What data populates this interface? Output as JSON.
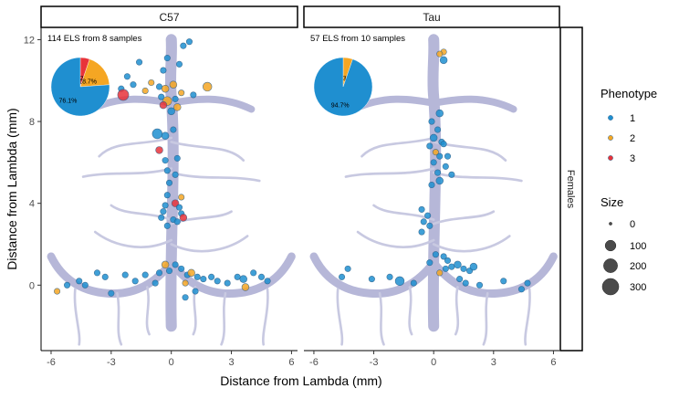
{
  "chart_data": {
    "type": "scatter",
    "xlabel": "Distance from Lambda (mm)",
    "ylabel": "Distance from Lambda (mm)",
    "xlim": [
      -6.5,
      6.3
    ],
    "ylim": [
      -3.2,
      12.6
    ],
    "xticks": [
      -6,
      -3,
      0,
      3,
      6
    ],
    "yticks": [
      0,
      4,
      8,
      12
    ],
    "grid": false,
    "facet_row_label": "Females",
    "legend": {
      "placement": "right",
      "phenotype": {
        "title": "Phenotype",
        "items": [
          {
            "label": "1",
            "color": "#1f8fd0"
          },
          {
            "label": "2",
            "color": "#f5a623"
          },
          {
            "label": "3",
            "color": "#e8333a"
          }
        ]
      },
      "size": {
        "title": "Size",
        "items": [
          {
            "label": "0",
            "value": 0
          },
          {
            "label": "100",
            "value": 100
          },
          {
            "label": "200",
            "value": 200
          },
          {
            "label": "300",
            "value": 300
          }
        ]
      }
    },
    "panels": [
      {
        "strip": "C57",
        "annotation": "114 ELS from 8 samples",
        "pie": [
          {
            "phenotype": "1",
            "fraction": 0.761,
            "label": "76.1%"
          },
          {
            "phenotype": "2",
            "fraction": 0.187,
            "label": "18.7%"
          },
          {
            "phenotype": "3",
            "fraction": 0.052,
            "label": "5.2%"
          }
        ],
        "points": [
          {
            "x": 0.6,
            "y": 11.7,
            "p": 1,
            "s": 15
          },
          {
            "x": 0.9,
            "y": 11.9,
            "p": 1,
            "s": 15
          },
          {
            "x": -0.2,
            "y": 11.1,
            "p": 1,
            "s": 15
          },
          {
            "x": 0.4,
            "y": 10.8,
            "p": 1,
            "s": 15
          },
          {
            "x": -0.4,
            "y": 10.5,
            "p": 1,
            "s": 15
          },
          {
            "x": -1.6,
            "y": 10.9,
            "p": 1,
            "s": 15
          },
          {
            "x": -2.2,
            "y": 10.2,
            "p": 1,
            "s": 15
          },
          {
            "x": -1.9,
            "y": 9.8,
            "p": 1,
            "s": 15
          },
          {
            "x": -2.5,
            "y": 9.6,
            "p": 1,
            "s": 15
          },
          {
            "x": -1.3,
            "y": 9.5,
            "p": 2,
            "s": 15
          },
          {
            "x": -1.0,
            "y": 9.9,
            "p": 2,
            "s": 15
          },
          {
            "x": -0.6,
            "y": 9.7,
            "p": 1,
            "s": 15
          },
          {
            "x": -0.3,
            "y": 9.6,
            "p": 2,
            "s": 30
          },
          {
            "x": 0.1,
            "y": 9.8,
            "p": 2,
            "s": 30
          },
          {
            "x": 0.5,
            "y": 9.4,
            "p": 2,
            "s": 15
          },
          {
            "x": 0.2,
            "y": 9.1,
            "p": 1,
            "s": 15
          },
          {
            "x": -0.5,
            "y": 9.2,
            "p": 1,
            "s": 15
          },
          {
            "x": -0.2,
            "y": 9.0,
            "p": 2,
            "s": 60
          },
          {
            "x": -0.4,
            "y": 8.8,
            "p": 3,
            "s": 30
          },
          {
            "x": 0.3,
            "y": 8.7,
            "p": 2,
            "s": 30
          },
          {
            "x": 0.0,
            "y": 8.5,
            "p": 1,
            "s": 30
          },
          {
            "x": 1.8,
            "y": 9.7,
            "p": 2,
            "s": 60
          },
          {
            "x": -2.4,
            "y": 9.3,
            "p": 3,
            "s": 110
          },
          {
            "x": 1.1,
            "y": 9.3,
            "p": 1,
            "s": 15
          },
          {
            "x": -0.7,
            "y": 7.4,
            "p": 1,
            "s": 80
          },
          {
            "x": -0.3,
            "y": 7.3,
            "p": 1,
            "s": 30
          },
          {
            "x": 0.1,
            "y": 7.6,
            "p": 1,
            "s": 15
          },
          {
            "x": -0.6,
            "y": 6.6,
            "p": 3,
            "s": 30
          },
          {
            "x": -0.3,
            "y": 6.1,
            "p": 1,
            "s": 15
          },
          {
            "x": 0.3,
            "y": 6.2,
            "p": 1,
            "s": 15
          },
          {
            "x": -0.2,
            "y": 5.6,
            "p": 1,
            "s": 15
          },
          {
            "x": 0.2,
            "y": 5.4,
            "p": 1,
            "s": 15
          },
          {
            "x": -0.1,
            "y": 5.0,
            "p": 1,
            "s": 15
          },
          {
            "x": 0.5,
            "y": 4.3,
            "p": 2,
            "s": 15
          },
          {
            "x": -0.2,
            "y": 4.4,
            "p": 1,
            "s": 15
          },
          {
            "x": 0.2,
            "y": 4.0,
            "p": 3,
            "s": 30
          },
          {
            "x": -0.3,
            "y": 3.9,
            "p": 1,
            "s": 15
          },
          {
            "x": 0.4,
            "y": 3.8,
            "p": 1,
            "s": 15
          },
          {
            "x": -0.4,
            "y": 3.6,
            "p": 1,
            "s": 15
          },
          {
            "x": 0.5,
            "y": 3.5,
            "p": 1,
            "s": 15
          },
          {
            "x": 0.1,
            "y": 3.2,
            "p": 1,
            "s": 15
          },
          {
            "x": 0.6,
            "y": 3.3,
            "p": 3,
            "s": 30
          },
          {
            "x": -0.5,
            "y": 3.3,
            "p": 1,
            "s": 15
          },
          {
            "x": 0.3,
            "y": 3.1,
            "p": 1,
            "s": 15
          },
          {
            "x": -0.2,
            "y": 2.9,
            "p": 1,
            "s": 15
          },
          {
            "x": -5.7,
            "y": -0.3,
            "p": 2,
            "s": 15
          },
          {
            "x": -5.2,
            "y": 0.0,
            "p": 1,
            "s": 15
          },
          {
            "x": -4.6,
            "y": 0.2,
            "p": 1,
            "s": 15
          },
          {
            "x": -4.3,
            "y": 0.0,
            "p": 1,
            "s": 15
          },
          {
            "x": -3.7,
            "y": 0.6,
            "p": 1,
            "s": 15
          },
          {
            "x": -3.3,
            "y": 0.4,
            "p": 1,
            "s": 15
          },
          {
            "x": -3.0,
            "y": -0.4,
            "p": 1,
            "s": 15
          },
          {
            "x": -2.3,
            "y": 0.5,
            "p": 1,
            "s": 15
          },
          {
            "x": -1.8,
            "y": 0.2,
            "p": 1,
            "s": 15
          },
          {
            "x": -1.3,
            "y": 0.5,
            "p": 1,
            "s": 15
          },
          {
            "x": -0.8,
            "y": 0.1,
            "p": 1,
            "s": 15
          },
          {
            "x": -0.6,
            "y": 0.6,
            "p": 1,
            "s": 15
          },
          {
            "x": -0.3,
            "y": 1.0,
            "p": 2,
            "s": 30
          },
          {
            "x": -0.1,
            "y": 0.7,
            "p": 1,
            "s": 15
          },
          {
            "x": 0.2,
            "y": 1.0,
            "p": 1,
            "s": 15
          },
          {
            "x": 0.5,
            "y": 0.8,
            "p": 1,
            "s": 15
          },
          {
            "x": 0.8,
            "y": 0.5,
            "p": 1,
            "s": 15
          },
          {
            "x": 1.0,
            "y": 0.6,
            "p": 2,
            "s": 30
          },
          {
            "x": 1.3,
            "y": 0.4,
            "p": 1,
            "s": 15
          },
          {
            "x": 0.7,
            "y": 0.1,
            "p": 2,
            "s": 15
          },
          {
            "x": 1.6,
            "y": 0.3,
            "p": 1,
            "s": 15
          },
          {
            "x": 2.0,
            "y": 0.4,
            "p": 1,
            "s": 15
          },
          {
            "x": 2.3,
            "y": 0.2,
            "p": 1,
            "s": 15
          },
          {
            "x": 2.8,
            "y": 0.1,
            "p": 1,
            "s": 15
          },
          {
            "x": 3.3,
            "y": 0.4,
            "p": 1,
            "s": 15
          },
          {
            "x": 3.6,
            "y": 0.3,
            "p": 1,
            "s": 30
          },
          {
            "x": 3.7,
            "y": -0.1,
            "p": 2,
            "s": 30
          },
          {
            "x": 4.1,
            "y": 0.6,
            "p": 1,
            "s": 15
          },
          {
            "x": 4.5,
            "y": 0.4,
            "p": 1,
            "s": 15
          },
          {
            "x": 4.8,
            "y": 0.2,
            "p": 1,
            "s": 15
          },
          {
            "x": 1.2,
            "y": -0.3,
            "p": 1,
            "s": 15
          },
          {
            "x": 0.7,
            "y": -0.6,
            "p": 1,
            "s": 15
          }
        ]
      },
      {
        "strip": "Tau",
        "annotation": "57 ELS from 10 samples",
        "pie": [
          {
            "phenotype": "1",
            "fraction": 0.947,
            "label": "94.7%"
          },
          {
            "phenotype": "2",
            "fraction": 0.053,
            "label": "5.3%"
          }
        ],
        "points": [
          {
            "x": 0.5,
            "y": 11.4,
            "p": 2,
            "s": 15
          },
          {
            "x": 0.3,
            "y": 11.3,
            "p": 2,
            "s": 15
          },
          {
            "x": 0.5,
            "y": 11.0,
            "p": 1,
            "s": 30
          },
          {
            "x": 0.3,
            "y": 8.4,
            "p": 1,
            "s": 30
          },
          {
            "x": -0.1,
            "y": 8.0,
            "p": 1,
            "s": 15
          },
          {
            "x": 0.2,
            "y": 7.6,
            "p": 1,
            "s": 15
          },
          {
            "x": 0.0,
            "y": 7.2,
            "p": 1,
            "s": 30
          },
          {
            "x": 0.4,
            "y": 7.0,
            "p": 1,
            "s": 15
          },
          {
            "x": -0.2,
            "y": 6.8,
            "p": 1,
            "s": 15
          },
          {
            "x": 0.1,
            "y": 6.5,
            "p": 2,
            "s": 15
          },
          {
            "x": 0.3,
            "y": 6.3,
            "p": 1,
            "s": 15
          },
          {
            "x": 0.0,
            "y": 6.0,
            "p": 1,
            "s": 15
          },
          {
            "x": 0.2,
            "y": 5.5,
            "p": 1,
            "s": 15
          },
          {
            "x": 0.5,
            "y": 6.9,
            "p": 1,
            "s": 15
          },
          {
            "x": 0.7,
            "y": 6.3,
            "p": 1,
            "s": 15
          },
          {
            "x": 0.6,
            "y": 5.8,
            "p": 1,
            "s": 15
          },
          {
            "x": 0.9,
            "y": 5.4,
            "p": 1,
            "s": 15
          },
          {
            "x": 0.3,
            "y": 5.1,
            "p": 1,
            "s": 30
          },
          {
            "x": -0.1,
            "y": 4.9,
            "p": 1,
            "s": 15
          },
          {
            "x": -0.6,
            "y": 3.7,
            "p": 1,
            "s": 15
          },
          {
            "x": -0.3,
            "y": 3.4,
            "p": 1,
            "s": 15
          },
          {
            "x": -0.5,
            "y": 3.1,
            "p": 1,
            "s": 15
          },
          {
            "x": -0.2,
            "y": 2.9,
            "p": 1,
            "s": 15
          },
          {
            "x": -0.6,
            "y": 2.6,
            "p": 1,
            "s": 15
          },
          {
            "x": -1.0,
            "y": 0.1,
            "p": 1,
            "s": 15
          },
          {
            "x": -1.7,
            "y": 0.2,
            "p": 1,
            "s": 60
          },
          {
            "x": -2.2,
            "y": 0.4,
            "p": 1,
            "s": 15
          },
          {
            "x": -3.1,
            "y": 0.3,
            "p": 1,
            "s": 15
          },
          {
            "x": -4.3,
            "y": 0.8,
            "p": 1,
            "s": 15
          },
          {
            "x": -4.6,
            "y": 0.4,
            "p": 1,
            "s": 15
          },
          {
            "x": -0.2,
            "y": 1.1,
            "p": 1,
            "s": 15
          },
          {
            "x": 0.1,
            "y": 1.5,
            "p": 1,
            "s": 15
          },
          {
            "x": 0.5,
            "y": 1.4,
            "p": 1,
            "s": 15
          },
          {
            "x": 0.7,
            "y": 1.2,
            "p": 1,
            "s": 15
          },
          {
            "x": 0.9,
            "y": 0.9,
            "p": 1,
            "s": 15
          },
          {
            "x": 1.2,
            "y": 1.0,
            "p": 1,
            "s": 30
          },
          {
            "x": 1.5,
            "y": 0.8,
            "p": 1,
            "s": 15
          },
          {
            "x": 1.8,
            "y": 0.7,
            "p": 1,
            "s": 15
          },
          {
            "x": 2.0,
            "y": 0.9,
            "p": 1,
            "s": 30
          },
          {
            "x": 1.3,
            "y": 0.3,
            "p": 1,
            "s": 15
          },
          {
            "x": 1.6,
            "y": 0.1,
            "p": 1,
            "s": 15
          },
          {
            "x": 2.3,
            "y": 0.0,
            "p": 1,
            "s": 15
          },
          {
            "x": 3.5,
            "y": 0.2,
            "p": 1,
            "s": 15
          },
          {
            "x": 4.4,
            "y": -0.2,
            "p": 1,
            "s": 15
          },
          {
            "x": 4.7,
            "y": 0.1,
            "p": 1,
            "s": 15
          },
          {
            "x": 0.6,
            "y": 0.8,
            "p": 1,
            "s": 15
          },
          {
            "x": 0.3,
            "y": 0.6,
            "p": 2,
            "s": 15
          }
        ]
      }
    ]
  }
}
